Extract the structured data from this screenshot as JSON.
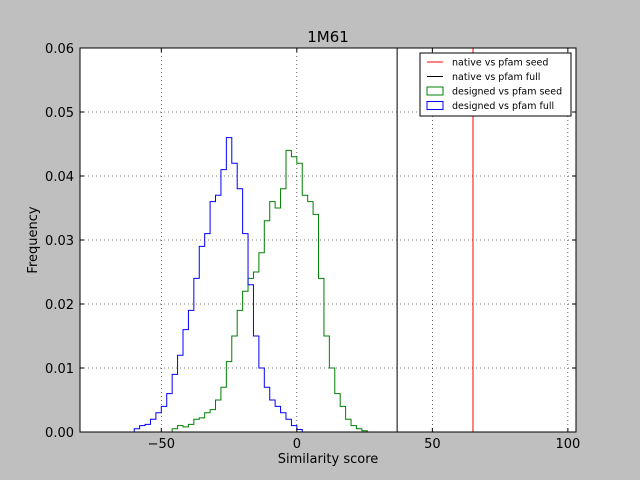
{
  "chart_data": {
    "type": "line",
    "title": "1M61",
    "xlabel": "Similarity score",
    "ylabel": "Frequency",
    "xlim": [
      -80,
      103
    ],
    "ylim": [
      0,
      0.06
    ],
    "x_ticks": [
      "−50",
      "0",
      "50",
      "100"
    ],
    "x_tick_values": [
      -50,
      0,
      50,
      100
    ],
    "y_ticks": [
      "0.00",
      "0.01",
      "0.02",
      "0.03",
      "0.04",
      "0.05",
      "0.06"
    ],
    "y_tick_values": [
      0,
      0.01,
      0.02,
      0.03,
      0.04,
      0.05,
      0.06
    ],
    "grid": true,
    "legend_position": "top-right",
    "legend": [
      {
        "label": "native vs pfam seed",
        "color": "#ff0000",
        "style": "line"
      },
      {
        "label": "native vs pfam full",
        "color": "#000000",
        "style": "line"
      },
      {
        "label": "designed vs pfam seed",
        "color": "#008000",
        "style": "patch"
      },
      {
        "label": "designed vs pfam full",
        "color": "#0000ff",
        "style": "patch"
      }
    ],
    "vlines": [
      {
        "name": "native vs pfam seed",
        "x": 65,
        "color": "#ff0000"
      },
      {
        "name": "native vs pfam full",
        "x": 37,
        "color": "#000000"
      }
    ],
    "series": [
      {
        "name": "designed vs pfam seed",
        "color": "#008000",
        "x": [
          -47,
          -45,
          -43,
          -41,
          -39,
          -37,
          -35,
          -33,
          -31,
          -29,
          -27,
          -25,
          -23,
          -21,
          -19,
          -17,
          -15,
          -13,
          -11,
          -9,
          -7,
          -5,
          -3,
          -1,
          1,
          3,
          5,
          7,
          9,
          11,
          13,
          15,
          17,
          19,
          21,
          23,
          25,
          27
        ],
        "values": [
          0.0,
          0.0005,
          0.001,
          0.0008,
          0.0012,
          0.002,
          0.0022,
          0.003,
          0.0035,
          0.005,
          0.007,
          0.011,
          0.015,
          0.019,
          0.022,
          0.024,
          0.025,
          0.028,
          0.033,
          0.036,
          0.035,
          0.038,
          0.044,
          0.043,
          0.042,
          0.037,
          0.036,
          0.034,
          0.024,
          0.015,
          0.01,
          0.006,
          0.004,
          0.002,
          0.001,
          0.0005,
          0.0002,
          0.0
        ]
      },
      {
        "name": "designed vs pfam full",
        "color": "#0000ff",
        "x": [
          -61,
          -59,
          -57,
          -55,
          -53,
          -51,
          -49,
          -47,
          -45,
          -43,
          -41,
          -39,
          -37,
          -35,
          -33,
          -31,
          -29,
          -27,
          -25,
          -23,
          -21,
          -19,
          -17,
          -15,
          -13,
          -11,
          -9,
          -7,
          -5,
          -3,
          -1,
          1,
          3
        ],
        "values": [
          0.0,
          0.0005,
          0.001,
          0.0012,
          0.002,
          0.003,
          0.004,
          0.006,
          0.009,
          0.012,
          0.016,
          0.019,
          0.024,
          0.029,
          0.031,
          0.036,
          0.037,
          0.041,
          0.046,
          0.042,
          0.038,
          0.031,
          0.023,
          0.015,
          0.01,
          0.007,
          0.005,
          0.004,
          0.003,
          0.002,
          0.001,
          0.0004,
          0.0
        ]
      }
    ]
  }
}
